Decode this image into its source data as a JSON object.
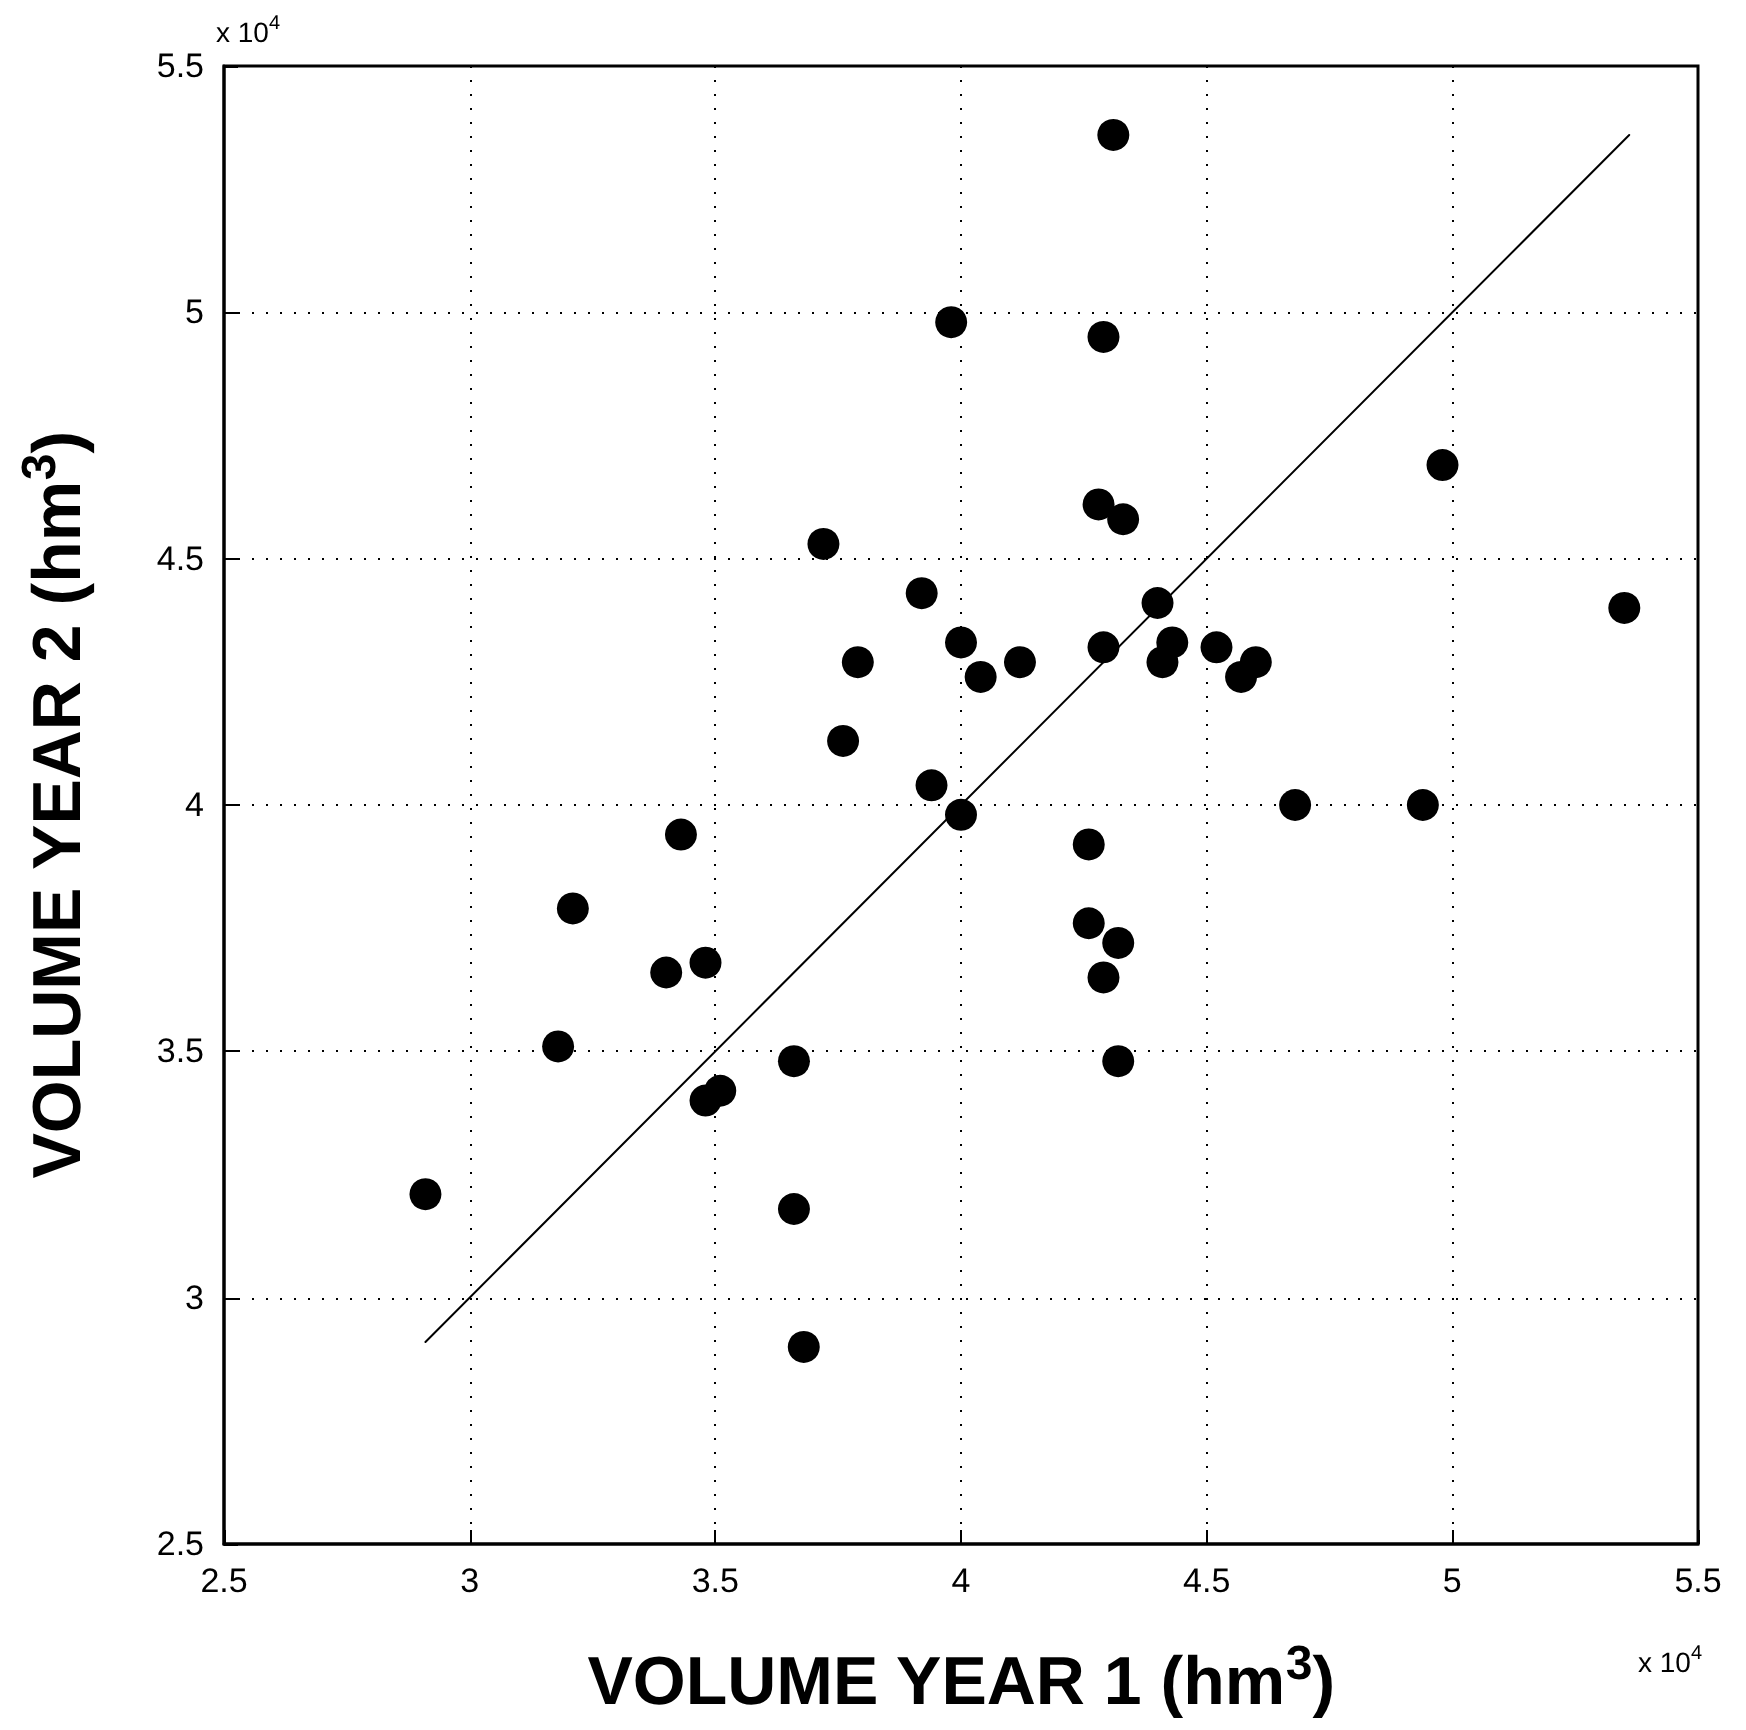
{
  "chart_data": {
    "type": "scatter",
    "xlabel": "VOLUME YEAR 1 (hm$^{3}$)",
    "ylabel": "VOLUME YEAR 2 (hm$^{3}$)",
    "annotations": [
      "x 10$^{4}$",
      "x 10$^{4}$"
    ],
    "xlim": [
      2.5,
      5.5
    ],
    "xticks": [
      2.5,
      3,
      3.5,
      4,
      4.5,
      5,
      5.5
    ],
    "ylim": [
      2.5,
      5.5
    ],
    "yticks": [
      2.5,
      3,
      3.5,
      4,
      4.5,
      5,
      5.5
    ],
    "grid": true,
    "series": [
      {
        "color": "#000000",
        "marker": "circle",
        "x": [
          2.91,
          3.18,
          3.21,
          3.4,
          3.48,
          3.43,
          3.48,
          3.51,
          3.66,
          3.66,
          3.68,
          3.94,
          4.0,
          3.98,
          3.72,
          3.92,
          3.79,
          3.76,
          4.31,
          4.29,
          4.28,
          4.33,
          4.4,
          4.98,
          5.35,
          4.0,
          4.04,
          4.12,
          4.29,
          4.41,
          4.43,
          4.52,
          4.57,
          4.6,
          4.68,
          4.94,
          4.26,
          4.26,
          4.32,
          4.29,
          4.32
        ],
        "values": [
          3.21,
          3.51,
          3.79,
          3.66,
          3.68,
          3.94,
          3.4,
          3.42,
          3.48,
          3.18,
          2.9,
          4.04,
          3.98,
          4.98,
          4.53,
          4.43,
          4.29,
          4.13,
          5.36,
          4.95,
          4.61,
          4.58,
          4.41,
          4.69,
          4.4,
          4.33,
          4.26,
          4.29,
          4.32,
          4.29,
          4.33,
          4.32,
          4.26,
          4.29,
          4.0,
          4.0,
          3.92,
          3.76,
          3.72,
          3.65,
          3.48
        ]
      },
      {
        "type": "line",
        "color": "#000000",
        "marker": "none",
        "line_style": "solid",
        "x": [
          2.91,
          5.36
        ],
        "values": [
          2.91,
          5.36
        ]
      }
    ]
  }
}
